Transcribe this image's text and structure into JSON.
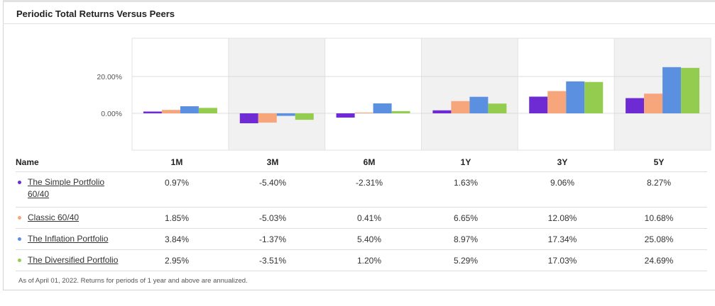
{
  "title": "Periodic Total Returns Versus Peers",
  "table": {
    "name_header": "Name",
    "periods": [
      "1M",
      "3M",
      "6M",
      "1Y",
      "3Y",
      "5Y"
    ],
    "rows": [
      {
        "name": "The Simple Portfolio 60/40",
        "name_line1": "The Simple Portfolio",
        "name_line2": "60/40",
        "color": "#6f2bd3",
        "values": [
          "0.97%",
          "-5.40%",
          "-2.31%",
          "1.63%",
          "9.06%",
          "8.27%"
        ]
      },
      {
        "name": "Classic 60/40",
        "name_line1": "Classic 60/40",
        "name_line2": "",
        "color": "#f7a57b",
        "values": [
          "1.85%",
          "-5.03%",
          "0.41%",
          "6.65%",
          "12.08%",
          "10.68%"
        ]
      },
      {
        "name": "The Inflation Portfolio",
        "name_line1": "The Inflation Portfolio",
        "name_line2": "",
        "color": "#5b8fdf",
        "values": [
          "3.84%",
          "-1.37%",
          "5.40%",
          "8.97%",
          "17.34%",
          "25.08%"
        ]
      },
      {
        "name": "The Diversified Portfolio",
        "name_line1": "The Diversified Portfolio",
        "name_line2": "",
        "color": "#93cc4e",
        "values": [
          "2.95%",
          "-3.51%",
          "1.20%",
          "5.29%",
          "17.03%",
          "24.69%"
        ]
      }
    ]
  },
  "footnote": "As of April 01, 2022. Returns for periods of 1 year and above are annualized.",
  "chart_data": {
    "type": "bar",
    "title": "Periodic Total Returns Versus Peers",
    "categories": [
      "1M",
      "3M",
      "6M",
      "1Y",
      "3Y",
      "5Y"
    ],
    "series": [
      {
        "name": "The Simple Portfolio 60/40",
        "color": "#6f2bd3",
        "values": [
          0.97,
          -5.4,
          -2.31,
          1.63,
          9.06,
          8.27
        ]
      },
      {
        "name": "Classic 60/40",
        "color": "#f7a57b",
        "values": [
          1.85,
          -5.03,
          0.41,
          6.65,
          12.08,
          10.68
        ]
      },
      {
        "name": "The Inflation Portfolio",
        "color": "#5b8fdf",
        "values": [
          3.84,
          -1.37,
          5.4,
          8.97,
          17.34,
          25.08
        ]
      },
      {
        "name": "The Diversified Portfolio",
        "color": "#93cc4e",
        "values": [
          2.95,
          -3.51,
          1.2,
          5.29,
          17.03,
          24.69
        ]
      }
    ],
    "yticks": [
      {
        "value": 20,
        "label": "20.00%"
      },
      {
        "value": 0,
        "label": "0.00%"
      }
    ],
    "ylim": [
      -20,
      40
    ],
    "grid": true,
    "xlabel": "",
    "ylabel": ""
  }
}
